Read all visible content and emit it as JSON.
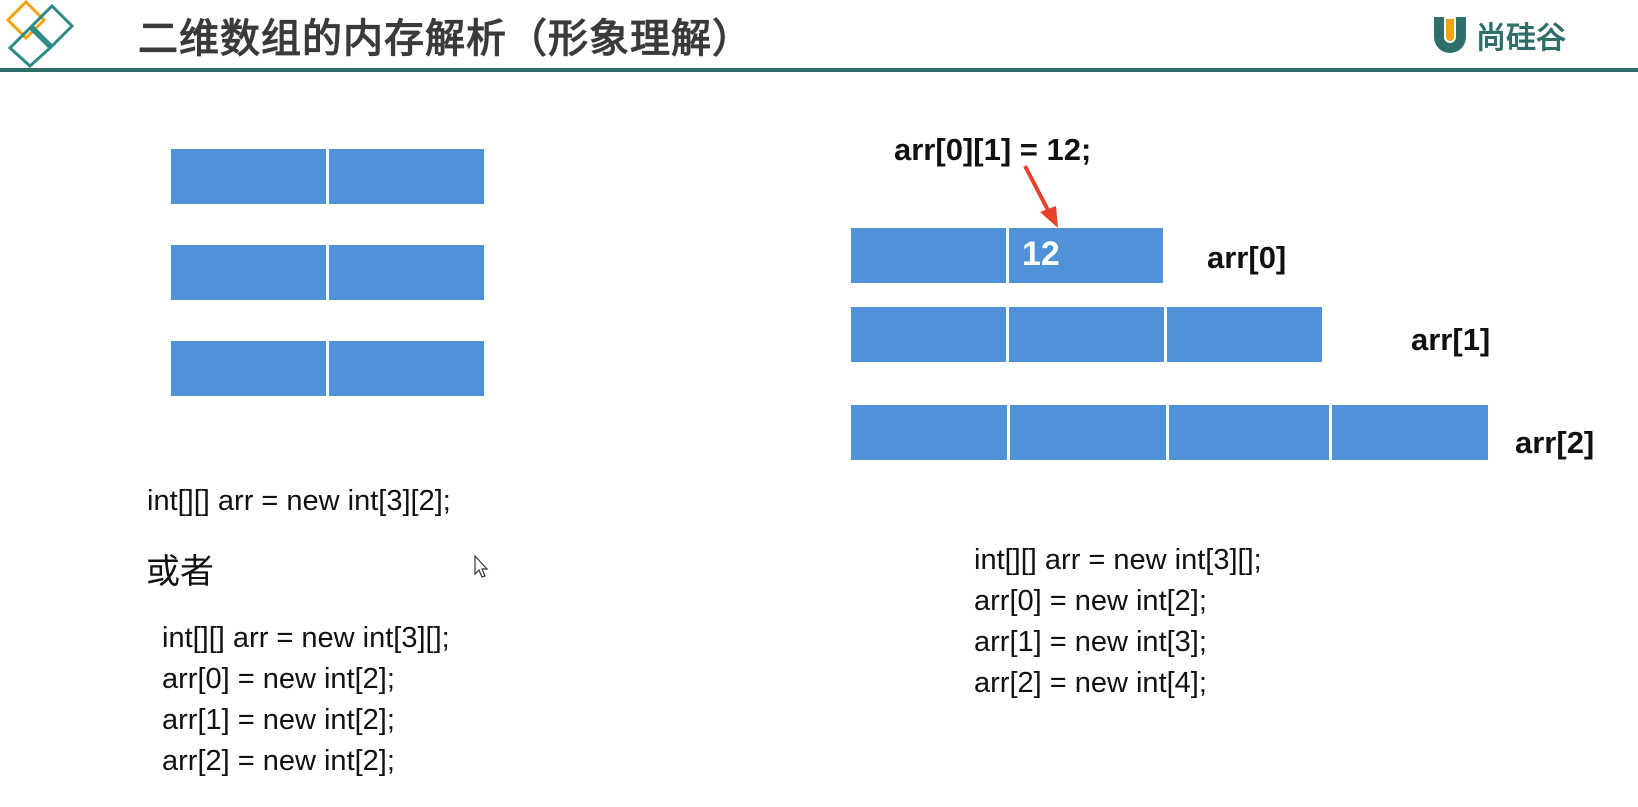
{
  "header": {
    "title": "二维数组的内存解析（形象理解）",
    "brand_name": "尚硅谷"
  },
  "left_diagram": {
    "rows": [
      {
        "cells": 2
      },
      {
        "cells": 2
      },
      {
        "cells": 2
      }
    ],
    "declaration": "int[][] arr = new int[3][2];",
    "or_text": "或者",
    "code_lines": [
      "int[][] arr = new int[3][];",
      "arr[0] = new int[2];",
      "arr[1] = new int[2];",
      "arr[2] = new int[2];"
    ]
  },
  "right_diagram": {
    "assignment": "arr[0][1] = 12;",
    "rows": [
      {
        "label": "arr[0]",
        "cells": 2,
        "values": [
          "",
          "12"
        ]
      },
      {
        "label": "arr[1]",
        "cells": 3,
        "values": [
          "",
          "",
          ""
        ]
      },
      {
        "label": "arr[2]",
        "cells": 4,
        "values": [
          "",
          "",
          "",
          ""
        ]
      }
    ],
    "code_lines": [
      "int[][] arr = new int[3][];",
      "arr[0] = new int[2];",
      "arr[1] = new int[3];",
      "arr[2] = new int[4];"
    ]
  },
  "colors": {
    "cell_fill": "#4f92d8",
    "header_rule": "#2f6f6a",
    "arrow": "#e8402a",
    "brand": "#2f6f6a",
    "brand_logo": "#f2a30f"
  }
}
